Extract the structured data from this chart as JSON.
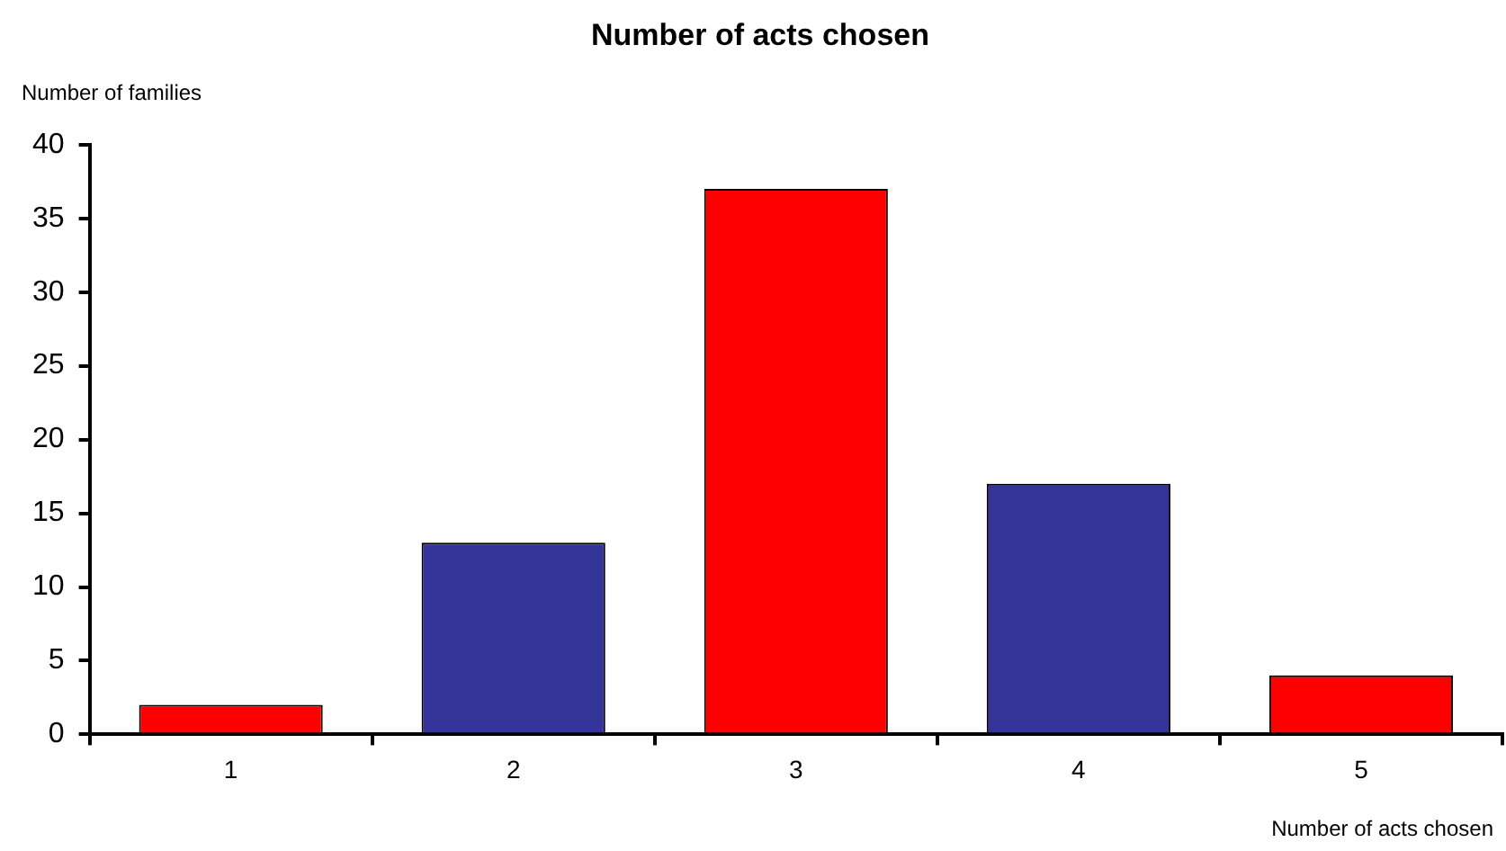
{
  "chart_data": {
    "type": "bar",
    "title": "Number of acts chosen",
    "xlabel": "Number of acts chosen",
    "ylabel": "Number of families",
    "categories": [
      "1",
      "2",
      "3",
      "4",
      "5"
    ],
    "values": [
      2,
      13,
      37,
      17,
      4
    ],
    "colors": [
      "#ff0000",
      "#333399",
      "#ff0000",
      "#333399",
      "#ff0000"
    ],
    "ylim": [
      0,
      40
    ],
    "yticks": [
      0,
      5,
      10,
      15,
      20,
      25,
      30,
      35,
      40
    ],
    "grid": false,
    "legend": false
  }
}
